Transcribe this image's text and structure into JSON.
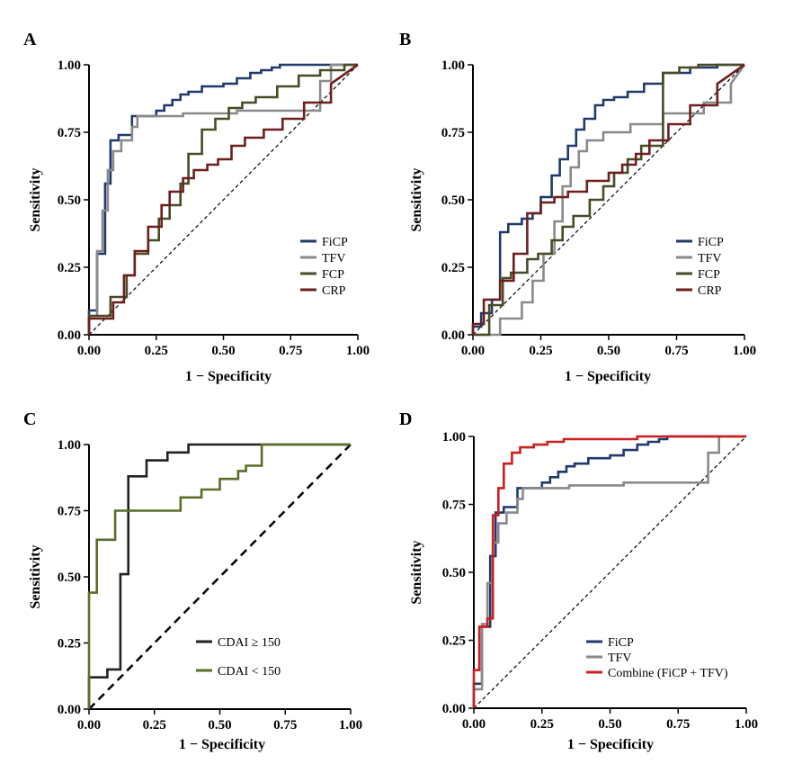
{
  "chart_data": [
    {
      "panel": "A",
      "type": "line",
      "xlabel": "1 − Specificity",
      "ylabel": "Sensitivity",
      "xlim": [
        0,
        1
      ],
      "ylim": [
        0,
        1
      ],
      "xticks": [
        "0.00",
        "0.25",
        "0.50",
        "0.75",
        "1.00"
      ],
      "yticks": [
        "0.00",
        "0.25",
        "0.50",
        "0.75",
        "1.00"
      ],
      "legend_position": "bottom-right",
      "diagonal": "dashed-thin",
      "series": [
        {
          "name": "FiCP",
          "color": "#1f3a6b",
          "x": [
            0,
            0,
            0.03,
            0.03,
            0.06,
            0.06,
            0.08,
            0.08,
            0.11,
            0.11,
            0.16,
            0.16,
            0.25,
            0.25,
            0.28,
            0.28,
            0.31,
            0.31,
            0.34,
            0.34,
            0.37,
            0.37,
            0.42,
            0.42,
            0.5,
            0.5,
            0.55,
            0.55,
            0.6,
            0.6,
            0.64,
            0.64,
            0.68,
            0.68,
            0.71,
            0.71,
            1
          ],
          "y": [
            0,
            0.09,
            0.09,
            0.3,
            0.3,
            0.56,
            0.56,
            0.72,
            0.72,
            0.74,
            0.74,
            0.81,
            0.81,
            0.83,
            0.83,
            0.85,
            0.85,
            0.87,
            0.87,
            0.89,
            0.89,
            0.9,
            0.9,
            0.92,
            0.92,
            0.93,
            0.93,
            0.95,
            0.95,
            0.97,
            0.97,
            0.98,
            0.98,
            0.99,
            0.99,
            1,
            1
          ]
        },
        {
          "name": "TFV",
          "color": "#8a8a8a",
          "x": [
            0,
            0,
            0.03,
            0.03,
            0.05,
            0.05,
            0.07,
            0.07,
            0.09,
            0.09,
            0.12,
            0.12,
            0.16,
            0.16,
            0.18,
            0.18,
            0.35,
            0.35,
            0.55,
            0.55,
            0.86,
            0.86,
            0.9,
            0.9,
            1
          ],
          "y": [
            0,
            0.07,
            0.07,
            0.31,
            0.31,
            0.46,
            0.46,
            0.61,
            0.61,
            0.68,
            0.68,
            0.72,
            0.72,
            0.77,
            0.77,
            0.81,
            0.81,
            0.82,
            0.82,
            0.83,
            0.83,
            0.94,
            0.94,
            1,
            1
          ]
        },
        {
          "name": "FCP",
          "color": "#4a4a24",
          "x": [
            0,
            0,
            0.08,
            0.08,
            0.14,
            0.14,
            0.17,
            0.17,
            0.22,
            0.22,
            0.26,
            0.26,
            0.3,
            0.3,
            0.34,
            0.34,
            0.37,
            0.37,
            0.42,
            0.42,
            0.47,
            0.47,
            0.52,
            0.52,
            0.57,
            0.57,
            0.62,
            0.62,
            0.7,
            0.7,
            0.78,
            0.78,
            0.86,
            0.86,
            0.95,
            0.95,
            1
          ],
          "y": [
            0,
            0.07,
            0.07,
            0.14,
            0.14,
            0.22,
            0.22,
            0.3,
            0.3,
            0.35,
            0.35,
            0.43,
            0.43,
            0.48,
            0.48,
            0.56,
            0.56,
            0.67,
            0.67,
            0.76,
            0.76,
            0.8,
            0.8,
            0.84,
            0.84,
            0.86,
            0.86,
            0.88,
            0.88,
            0.92,
            0.92,
            0.96,
            0.96,
            0.98,
            0.98,
            1,
            1
          ]
        },
        {
          "name": "CRP",
          "color": "#6e1e1e",
          "x": [
            0,
            0,
            0.09,
            0.09,
            0.13,
            0.13,
            0.17,
            0.17,
            0.22,
            0.22,
            0.27,
            0.27,
            0.3,
            0.3,
            0.35,
            0.35,
            0.39,
            0.39,
            0.44,
            0.44,
            0.48,
            0.48,
            0.53,
            0.53,
            0.58,
            0.58,
            0.65,
            0.65,
            0.72,
            0.72,
            0.8,
            0.8,
            0.9,
            0.9,
            1
          ],
          "y": [
            0,
            0.06,
            0.06,
            0.12,
            0.12,
            0.22,
            0.22,
            0.31,
            0.31,
            0.4,
            0.4,
            0.48,
            0.48,
            0.53,
            0.53,
            0.58,
            0.58,
            0.61,
            0.61,
            0.63,
            0.63,
            0.65,
            0.65,
            0.7,
            0.7,
            0.73,
            0.73,
            0.76,
            0.76,
            0.8,
            0.8,
            0.86,
            0.86,
            0.93,
            1
          ]
        }
      ]
    },
    {
      "panel": "B",
      "type": "line",
      "xlabel": "1 − Specificity",
      "ylabel": "Sensitivity",
      "xlim": [
        0,
        1
      ],
      "ylim": [
        0,
        1
      ],
      "xticks": [
        "0.00",
        "0.25",
        "0.50",
        "0.75",
        "1.00"
      ],
      "yticks": [
        "0.00",
        "0.25",
        "0.50",
        "0.75",
        "1.00"
      ],
      "legend_position": "bottom-right",
      "diagonal": "dashed-thin",
      "series": [
        {
          "name": "FiCP",
          "color": "#1f3a6b",
          "x": [
            0,
            0,
            0.03,
            0.03,
            0.07,
            0.07,
            0.1,
            0.1,
            0.13,
            0.13,
            0.18,
            0.18,
            0.22,
            0.22,
            0.25,
            0.25,
            0.29,
            0.29,
            0.32,
            0.32,
            0.35,
            0.35,
            0.38,
            0.38,
            0.41,
            0.41,
            0.45,
            0.45,
            0.48,
            0.48,
            0.52,
            0.52,
            0.57,
            0.57,
            0.63,
            0.63,
            0.7,
            0.7,
            0.8,
            0.8,
            0.9,
            0.9,
            1
          ],
          "y": [
            0,
            0.03,
            0.03,
            0.08,
            0.08,
            0.13,
            0.13,
            0.38,
            0.38,
            0.41,
            0.41,
            0.43,
            0.43,
            0.45,
            0.45,
            0.51,
            0.51,
            0.59,
            0.59,
            0.65,
            0.65,
            0.7,
            0.7,
            0.76,
            0.76,
            0.8,
            0.8,
            0.85,
            0.85,
            0.87,
            0.87,
            0.88,
            0.88,
            0.9,
            0.9,
            0.93,
            0.93,
            0.97,
            0.97,
            0.99,
            0.99,
            1,
            1
          ]
        },
        {
          "name": "TFV",
          "color": "#8a8a8a",
          "x": [
            0,
            0.1,
            0.1,
            0.18,
            0.18,
            0.22,
            0.22,
            0.26,
            0.26,
            0.3,
            0.3,
            0.33,
            0.33,
            0.36,
            0.36,
            0.39,
            0.39,
            0.42,
            0.42,
            0.48,
            0.48,
            0.58,
            0.58,
            0.7,
            0.7,
            0.85,
            0.85,
            0.95,
            0.95,
            1
          ],
          "y": [
            0,
            0,
            0.06,
            0.06,
            0.12,
            0.12,
            0.2,
            0.2,
            0.3,
            0.3,
            0.42,
            0.42,
            0.55,
            0.55,
            0.62,
            0.62,
            0.68,
            0.68,
            0.72,
            0.72,
            0.75,
            0.75,
            0.78,
            0.78,
            0.82,
            0.82,
            0.86,
            0.86,
            0.93,
            1
          ]
        },
        {
          "name": "FCP",
          "color": "#4a4a24",
          "x": [
            0,
            0.06,
            0.06,
            0.11,
            0.11,
            0.14,
            0.14,
            0.2,
            0.2,
            0.24,
            0.24,
            0.29,
            0.29,
            0.33,
            0.33,
            0.37,
            0.37,
            0.43,
            0.43,
            0.48,
            0.48,
            0.52,
            0.52,
            0.57,
            0.57,
            0.62,
            0.62,
            0.7,
            0.7,
            0.76,
            0.76,
            0.83,
            0.83,
            0.9,
            0.9,
            1
          ],
          "y": [
            0,
            0,
            0.11,
            0.11,
            0.21,
            0.21,
            0.23,
            0.23,
            0.28,
            0.28,
            0.3,
            0.3,
            0.35,
            0.35,
            0.4,
            0.4,
            0.44,
            0.44,
            0.5,
            0.5,
            0.55,
            0.55,
            0.6,
            0.6,
            0.65,
            0.65,
            0.7,
            0.7,
            0.97,
            0.97,
            0.99,
            0.99,
            1,
            1,
            1,
            1
          ]
        },
        {
          "name": "CRP",
          "color": "#6e1e1e",
          "x": [
            0,
            0,
            0.04,
            0.04,
            0.1,
            0.1,
            0.15,
            0.15,
            0.2,
            0.2,
            0.25,
            0.25,
            0.3,
            0.3,
            0.35,
            0.35,
            0.42,
            0.42,
            0.5,
            0.5,
            0.55,
            0.55,
            0.6,
            0.6,
            0.65,
            0.65,
            0.72,
            0.72,
            0.8,
            0.8,
            0.9,
            0.9,
            1
          ],
          "y": [
            0,
            0.04,
            0.04,
            0.13,
            0.13,
            0.2,
            0.2,
            0.3,
            0.3,
            0.45,
            0.45,
            0.49,
            0.49,
            0.51,
            0.51,
            0.53,
            0.53,
            0.57,
            0.57,
            0.6,
            0.6,
            0.63,
            0.63,
            0.67,
            0.67,
            0.72,
            0.72,
            0.78,
            0.78,
            0.85,
            0.85,
            0.93,
            1
          ]
        }
      ]
    },
    {
      "panel": "C",
      "type": "line",
      "xlabel": "1 − Specificity",
      "ylabel": "Sensitivity",
      "xlim": [
        0,
        1
      ],
      "ylim": [
        0,
        1
      ],
      "xticks": [
        "0.00",
        "0.25",
        "0.50",
        "0.75",
        "1.00"
      ],
      "yticks": [
        "0.00",
        "0.25",
        "0.50",
        "0.75",
        "1.00"
      ],
      "legend_position": "bottom-right",
      "diagonal": "dashed-thick",
      "series": [
        {
          "name": "CDAI ≥ 150",
          "color": "#222222",
          "x": [
            0,
            0,
            0.07,
            0.07,
            0.12,
            0.12,
            0.15,
            0.15,
            0.22,
            0.22,
            0.3,
            0.3,
            0.38,
            0.38,
            0.5,
            0.5,
            0.68,
            0.68,
            1
          ],
          "y": [
            0,
            0.12,
            0.12,
            0.15,
            0.15,
            0.51,
            0.51,
            0.88,
            0.88,
            0.94,
            0.94,
            0.97,
            0.97,
            1,
            1,
            1,
            1,
            1,
            1
          ]
        },
        {
          "name": "CDAI < 150",
          "color": "#5a6e2a",
          "x": [
            0,
            0,
            0.03,
            0.03,
            0.1,
            0.1,
            0.35,
            0.35,
            0.43,
            0.43,
            0.5,
            0.5,
            0.57,
            0.57,
            0.6,
            0.6,
            0.66,
            0.66,
            1
          ],
          "y": [
            0,
            0.44,
            0.44,
            0.64,
            0.64,
            0.75,
            0.75,
            0.8,
            0.8,
            0.83,
            0.83,
            0.87,
            0.87,
            0.9,
            0.9,
            0.92,
            0.92,
            1,
            1
          ]
        }
      ]
    },
    {
      "panel": "D",
      "type": "line",
      "xlabel": "1 − Specificity",
      "ylabel": "Sensitivity",
      "xlim": [
        0,
        1
      ],
      "ylim": [
        0,
        1
      ],
      "xticks": [
        "0.00",
        "0.25",
        "0.50",
        "0.75",
        "1.00"
      ],
      "yticks": [
        "0.00",
        "0.25",
        "0.50",
        "0.75",
        "1.00"
      ],
      "legend_position": "bottom-right",
      "diagonal": "dashed-thin",
      "series": [
        {
          "name": "FiCP",
          "color": "#1f3a6b",
          "x": [
            0,
            0,
            0.03,
            0.03,
            0.06,
            0.06,
            0.08,
            0.08,
            0.11,
            0.11,
            0.16,
            0.16,
            0.25,
            0.25,
            0.28,
            0.28,
            0.31,
            0.31,
            0.34,
            0.34,
            0.37,
            0.37,
            0.42,
            0.42,
            0.5,
            0.5,
            0.55,
            0.55,
            0.6,
            0.6,
            0.64,
            0.64,
            0.68,
            0.68,
            0.71,
            0.71,
            1
          ],
          "y": [
            0,
            0.09,
            0.09,
            0.3,
            0.3,
            0.56,
            0.56,
            0.72,
            0.72,
            0.74,
            0.74,
            0.81,
            0.81,
            0.83,
            0.83,
            0.85,
            0.85,
            0.87,
            0.87,
            0.89,
            0.89,
            0.9,
            0.9,
            0.92,
            0.92,
            0.93,
            0.93,
            0.95,
            0.95,
            0.97,
            0.97,
            0.98,
            0.98,
            0.99,
            0.99,
            1,
            1
          ]
        },
        {
          "name": "TFV",
          "color": "#8a8a8a",
          "x": [
            0,
            0,
            0.03,
            0.03,
            0.05,
            0.05,
            0.07,
            0.07,
            0.09,
            0.09,
            0.12,
            0.12,
            0.16,
            0.16,
            0.18,
            0.18,
            0.35,
            0.35,
            0.55,
            0.55,
            0.86,
            0.86,
            0.9,
            0.9,
            1
          ],
          "y": [
            0,
            0.07,
            0.07,
            0.31,
            0.31,
            0.46,
            0.46,
            0.61,
            0.61,
            0.68,
            0.68,
            0.72,
            0.72,
            0.77,
            0.77,
            0.81,
            0.81,
            0.82,
            0.82,
            0.83,
            0.83,
            0.94,
            0.94,
            1,
            1
          ]
        },
        {
          "name": "Combine (FiCP + TFV)",
          "color": "#cc1f1f",
          "x": [
            0,
            0,
            0.02,
            0.02,
            0.05,
            0.05,
            0.07,
            0.07,
            0.09,
            0.09,
            0.11,
            0.11,
            0.14,
            0.14,
            0.17,
            0.17,
            0.22,
            0.22,
            0.27,
            0.27,
            0.33,
            0.33,
            0.6,
            0.6,
            0.7,
            0.7,
            0.85,
            0.85,
            1
          ],
          "y": [
            0,
            0.14,
            0.14,
            0.3,
            0.3,
            0.33,
            0.33,
            0.71,
            0.71,
            0.81,
            0.81,
            0.9,
            0.9,
            0.94,
            0.94,
            0.96,
            0.96,
            0.97,
            0.97,
            0.98,
            0.98,
            0.99,
            0.99,
            1,
            1,
            1,
            1,
            1,
            1
          ]
        }
      ]
    }
  ]
}
